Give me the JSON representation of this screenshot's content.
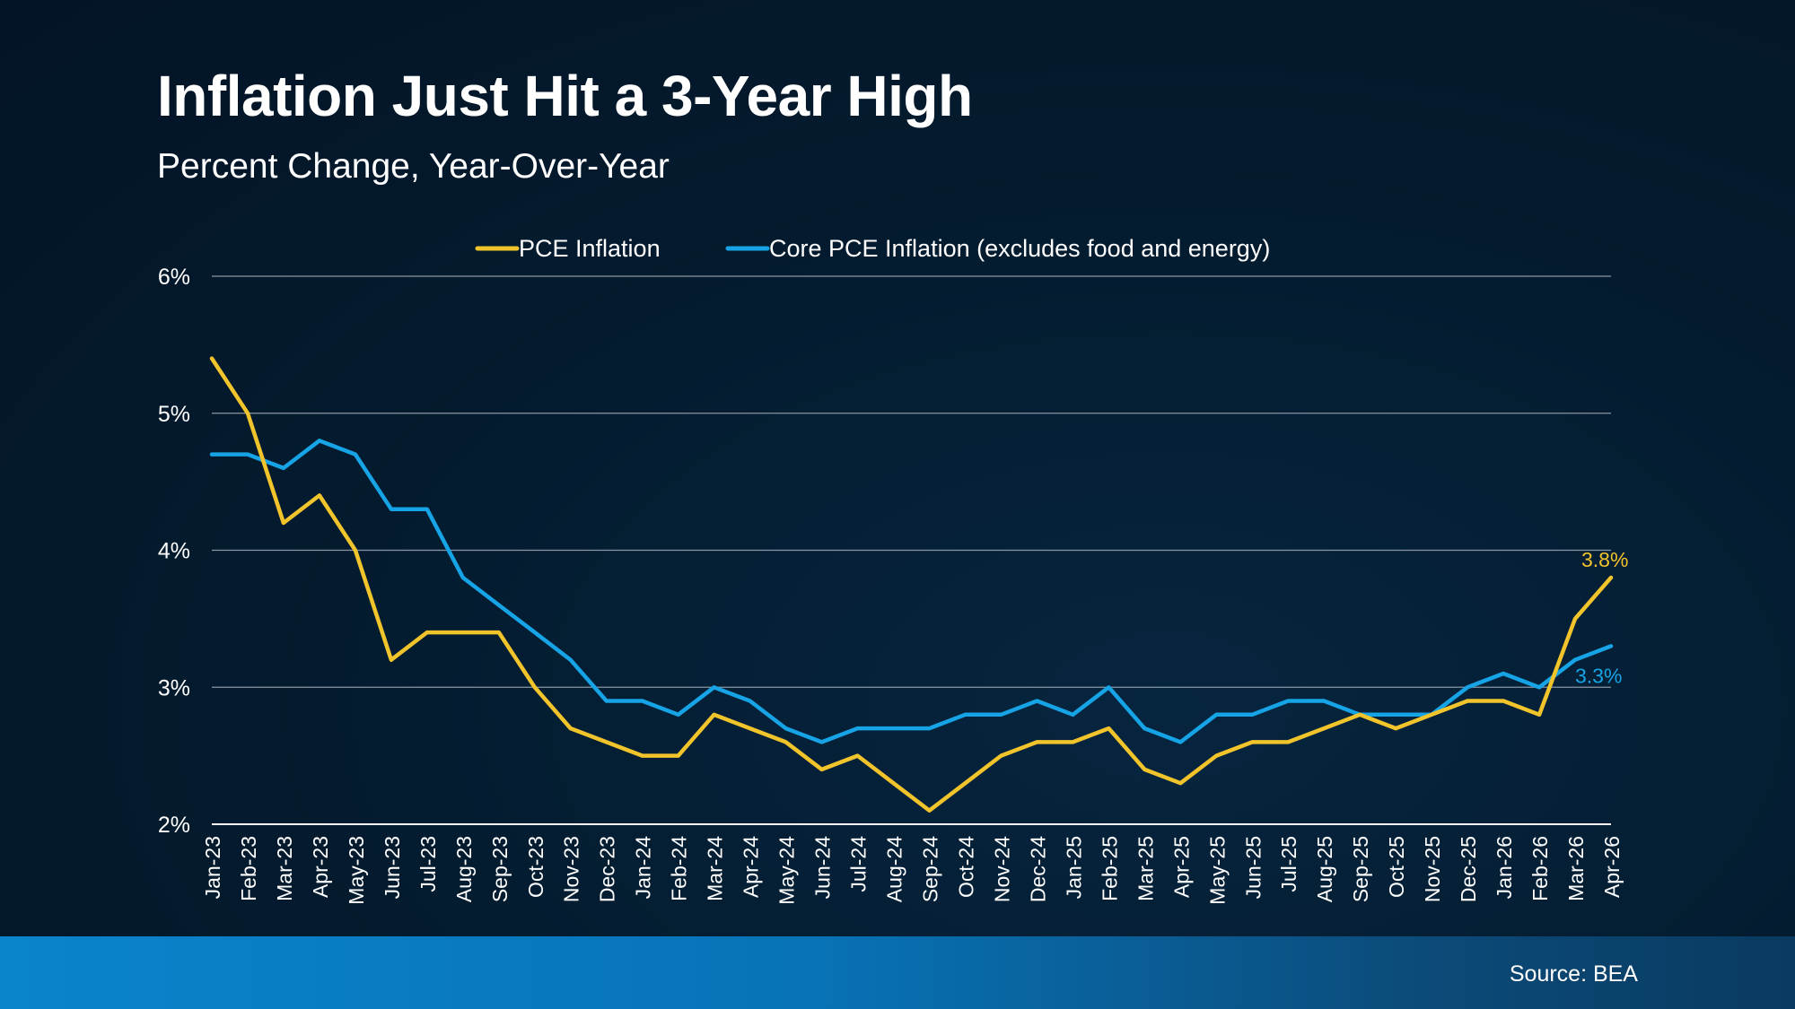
{
  "header": {
    "title": "Inflation Just Hit a 3-Year High",
    "subtitle": "Percent Change, Year-Over-Year"
  },
  "footer": {
    "source": "Source: BEA"
  },
  "colors": {
    "pce": "#f2c42c",
    "core": "#16a4e6",
    "grid": "#8a96a3",
    "axis": "#ffffff",
    "footer_band": "#0a84cc"
  },
  "chart_data": {
    "type": "line",
    "title": "Inflation Just Hit a 3-Year High",
    "subtitle": "Percent Change, Year-Over-Year",
    "xlabel": "",
    "ylabel": "",
    "ylim": [
      2,
      6
    ],
    "y_ticks": [
      "2%",
      "3%",
      "4%",
      "5%",
      "6%"
    ],
    "grid": true,
    "legend_position": "top-center",
    "categories": [
      "Jan-23",
      "Feb-23",
      "Mar-23",
      "Apr-23",
      "May-23",
      "Jun-23",
      "Jul-23",
      "Aug-23",
      "Sep-23",
      "Oct-23",
      "Nov-23",
      "Dec-23",
      "Jan-24",
      "Feb-24",
      "Mar-24",
      "Apr-24",
      "May-24",
      "Jun-24",
      "Jul-24",
      "Aug-24",
      "Sep-24",
      "Oct-24",
      "Nov-24",
      "Dec-24",
      "Jan-25",
      "Feb-25",
      "Mar-25",
      "Apr-25",
      "May-25",
      "Jun-25",
      "Jul-25",
      "Aug-25",
      "Sep-25",
      "Oct-25",
      "Nov-25",
      "Dec-25",
      "Jan-26",
      "Feb-26",
      "Mar-26",
      "Apr-26"
    ],
    "series": [
      {
        "name": "PCE Inflation",
        "color": "#f2c42c",
        "end_label": "3.8%",
        "values": [
          5.4,
          5.0,
          4.2,
          4.4,
          4.0,
          3.2,
          3.4,
          3.4,
          3.4,
          3.0,
          2.7,
          2.6,
          2.5,
          2.5,
          2.8,
          2.7,
          2.6,
          2.4,
          2.5,
          2.3,
          2.1,
          2.3,
          2.5,
          2.6,
          2.6,
          2.7,
          2.4,
          2.3,
          2.5,
          2.6,
          2.6,
          2.7,
          2.8,
          2.7,
          2.8,
          2.9,
          2.9,
          2.8,
          3.5,
          3.8
        ]
      },
      {
        "name": "Core PCE Inflation (excludes food and energy)",
        "color": "#16a4e6",
        "end_label": "3.3%",
        "values": [
          4.7,
          4.7,
          4.6,
          4.8,
          4.7,
          4.3,
          4.3,
          3.8,
          3.6,
          3.4,
          3.2,
          2.9,
          2.9,
          2.8,
          3.0,
          2.9,
          2.7,
          2.6,
          2.7,
          2.7,
          2.7,
          2.8,
          2.8,
          2.9,
          2.8,
          3.0,
          2.7,
          2.6,
          2.8,
          2.8,
          2.9,
          2.9,
          2.8,
          2.8,
          2.8,
          3.0,
          3.1,
          3.0,
          3.2,
          3.3
        ]
      }
    ]
  }
}
